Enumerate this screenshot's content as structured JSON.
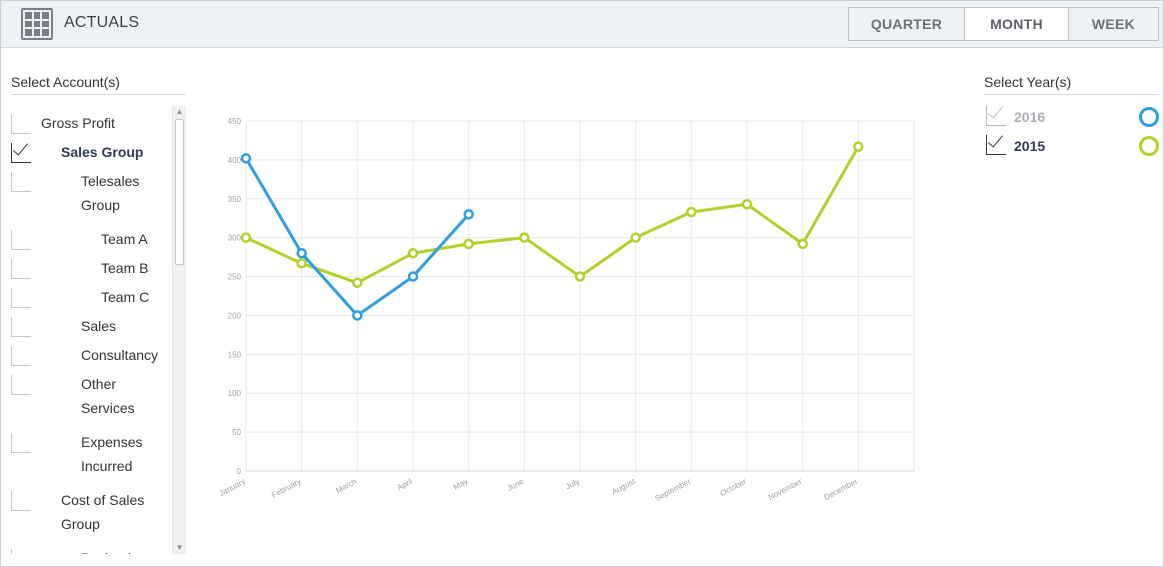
{
  "header": {
    "title": "ACTUALS",
    "icon": "grid-icon",
    "periods": [
      {
        "label": "QUARTER",
        "active": false
      },
      {
        "label": "MONTH",
        "active": true
      },
      {
        "label": "WEEK",
        "active": false
      }
    ]
  },
  "accounts": {
    "title": "Select Account(s)",
    "items": [
      {
        "label": "Gross Profit",
        "checked": false,
        "level": 0
      },
      {
        "label": "Sales Group",
        "checked": true,
        "level": 1
      },
      {
        "label": "Telesales Group",
        "checked": false,
        "level": 2
      },
      {
        "label": "Team A",
        "checked": false,
        "level": 3
      },
      {
        "label": "Team B",
        "checked": false,
        "level": 3
      },
      {
        "label": "Team C",
        "checked": false,
        "level": 3
      },
      {
        "label": "Sales",
        "checked": false,
        "level": 2
      },
      {
        "label": "Consultancy",
        "checked": false,
        "level": 2
      },
      {
        "label": "Other Services",
        "checked": false,
        "level": 2
      },
      {
        "label": "Expenses Incurred",
        "checked": false,
        "level": 2
      },
      {
        "label": "Cost of Sales Group",
        "checked": false,
        "level": 1
      },
      {
        "label": "Packaging",
        "checked": false,
        "level": 2
      }
    ]
  },
  "years": {
    "title": "Select Year(s)",
    "items": [
      {
        "label": "2016",
        "checked": true,
        "dimmed": true,
        "color": "#2e9ee0"
      },
      {
        "label": "2015",
        "checked": true,
        "dimmed": false,
        "color": "#b5cf2a"
      }
    ]
  },
  "chart_data": {
    "type": "line",
    "categories": [
      "January",
      "February",
      "March",
      "April",
      "May",
      "June",
      "July",
      "August",
      "September",
      "October",
      "November",
      "December"
    ],
    "ylim": [
      0,
      450
    ],
    "yticks": [
      0,
      50,
      100,
      150,
      200,
      250,
      300,
      350,
      400,
      450
    ],
    "grid": true,
    "series": [
      {
        "name": "2016",
        "color": "#2e9ee0",
        "values": [
          402,
          280,
          200,
          250,
          330,
          null,
          null,
          null,
          null,
          null,
          null,
          null
        ]
      },
      {
        "name": "2015",
        "color": "#b5cf2a",
        "values": [
          300,
          267,
          242,
          280,
          292,
          300,
          250,
          300,
          333,
          343,
          292,
          417
        ]
      }
    ]
  }
}
